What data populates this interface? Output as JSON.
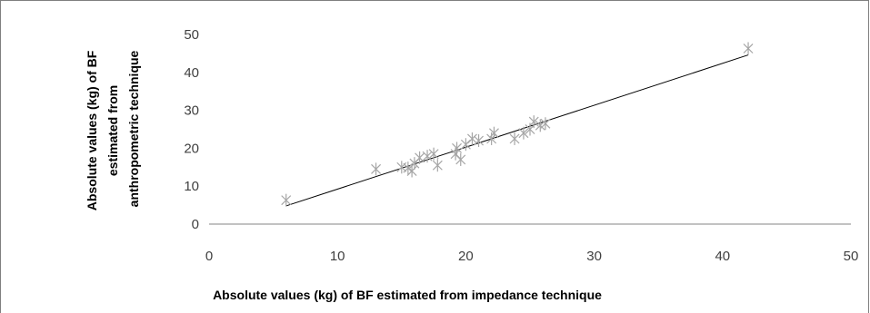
{
  "chart_data": {
    "type": "scatter",
    "title": "",
    "xlabel": "Absolute values (kg) of BF estimated from impedance technique",
    "ylabel_lines": [
      "Absolute values (kg) of BF",
      "estimated from",
      "anthropometric technique"
    ],
    "xlim": [
      0,
      50
    ],
    "ylim": [
      0,
      50
    ],
    "x_ticks": [
      0,
      10,
      20,
      30,
      40,
      50
    ],
    "y_ticks": [
      0,
      10,
      20,
      30,
      40,
      50
    ],
    "grid": false,
    "legend": "none",
    "marker_color": "#a6a6a6",
    "line_color": "#000000",
    "points": [
      {
        "x": 6.0,
        "y": 6.3
      },
      {
        "x": 13.0,
        "y": 14.5
      },
      {
        "x": 15.0,
        "y": 15.0
      },
      {
        "x": 15.5,
        "y": 14.8
      },
      {
        "x": 15.8,
        "y": 14.0
      },
      {
        "x": 16.0,
        "y": 16.0
      },
      {
        "x": 16.4,
        "y": 17.5
      },
      {
        "x": 17.0,
        "y": 17.9
      },
      {
        "x": 17.5,
        "y": 18.5
      },
      {
        "x": 17.8,
        "y": 15.5
      },
      {
        "x": 19.2,
        "y": 18.5
      },
      {
        "x": 19.3,
        "y": 20.0
      },
      {
        "x": 19.6,
        "y": 17.0
      },
      {
        "x": 20.0,
        "y": 21.0
      },
      {
        "x": 20.5,
        "y": 22.5
      },
      {
        "x": 21.0,
        "y": 22.0
      },
      {
        "x": 22.0,
        "y": 22.5
      },
      {
        "x": 22.2,
        "y": 24.0
      },
      {
        "x": 23.8,
        "y": 22.5
      },
      {
        "x": 24.5,
        "y": 24.0
      },
      {
        "x": 25.0,
        "y": 25.0
      },
      {
        "x": 25.3,
        "y": 27.0
      },
      {
        "x": 25.8,
        "y": 26.0
      },
      {
        "x": 26.2,
        "y": 26.5
      },
      {
        "x": 42.0,
        "y": 46.3
      }
    ],
    "trendline": {
      "x": [
        6.0,
        42.0
      ],
      "y": [
        4.8,
        44.6
      ]
    }
  }
}
